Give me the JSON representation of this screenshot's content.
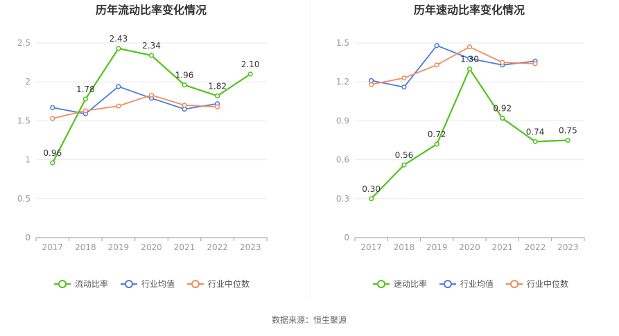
{
  "source_text": "数据来源：恒生聚源",
  "colors": {
    "primary": "#52c41a",
    "avg": "#4a7de0",
    "median": "#f08c5e",
    "grid": "#e5e8f0",
    "axis": "#999999"
  },
  "chart_data": [
    {
      "type": "line",
      "title": "历年流动比率变化情况",
      "xlabel": "",
      "ylabel": "",
      "categories": [
        "2017",
        "2018",
        "2019",
        "2020",
        "2021",
        "2022",
        "2023"
      ],
      "ylim": [
        0,
        2.5
      ],
      "yticks": [
        "0",
        "0.5",
        "1",
        "1.5",
        "2",
        "2.5"
      ],
      "ytick_values": [
        0,
        0.5,
        1,
        1.5,
        2,
        2.5
      ],
      "grid": true,
      "legend_position": "bottom",
      "series": [
        {
          "name": "流动比率",
          "values": [
            0.96,
            1.78,
            2.43,
            2.34,
            1.96,
            1.82,
            2.1
          ],
          "labels": [
            "0.96",
            "1.78",
            "2.43",
            "2.34",
            "1.96",
            "1.82",
            "2.10"
          ]
        },
        {
          "name": "行业均值",
          "values": [
            1.67,
            1.59,
            1.94,
            1.79,
            1.65,
            1.72,
            null
          ]
        },
        {
          "name": "行业中位数",
          "values": [
            1.53,
            1.63,
            1.69,
            1.83,
            1.7,
            1.68,
            null
          ]
        }
      ]
    },
    {
      "type": "line",
      "title": "历年速动比率变化情况",
      "xlabel": "",
      "ylabel": "",
      "categories": [
        "2017",
        "2018",
        "2019",
        "2020",
        "2021",
        "2022",
        "2023"
      ],
      "ylim": [
        0,
        1.5
      ],
      "yticks": [
        "0",
        "0.3",
        "0.6",
        "0.9",
        "1.2",
        "1.5"
      ],
      "ytick_values": [
        0,
        0.3,
        0.6,
        0.9,
        1.2,
        1.5
      ],
      "grid": true,
      "legend_position": "bottom",
      "series": [
        {
          "name": "速动比率",
          "values": [
            0.3,
            0.56,
            0.72,
            1.3,
            0.92,
            0.74,
            0.75
          ],
          "labels": [
            "0.30",
            "0.56",
            "0.72",
            "1.30",
            "0.92",
            "0.74",
            "0.75"
          ]
        },
        {
          "name": "行业均值",
          "values": [
            1.21,
            1.16,
            1.48,
            1.38,
            1.33,
            1.36,
            null
          ]
        },
        {
          "name": "行业中位数",
          "values": [
            1.18,
            1.23,
            1.33,
            1.47,
            1.35,
            1.34,
            null
          ]
        }
      ]
    }
  ]
}
